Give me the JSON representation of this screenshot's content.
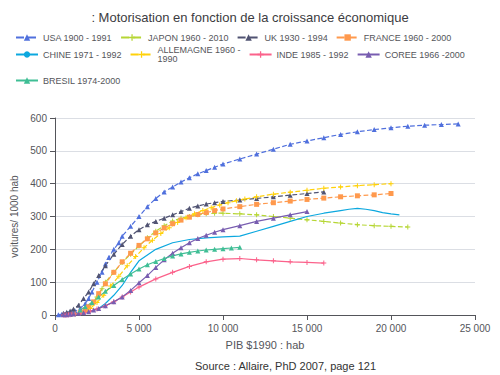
{
  "chart_data": {
    "type": "line",
    "title": ": Motorisation en fonction de la croissance économique",
    "x_label": "PIB $1990 : hab",
    "y_label": "voitures/ 1000 hab",
    "annotations": [
      "Source : Allaire, PhD 2007, page 121"
    ],
    "xlim": [
      0,
      25000
    ],
    "ylim": [
      0,
      600
    ],
    "xticks": [
      0,
      {
        "value": 5000,
        "label": "5 000"
      },
      {
        "value": 10000,
        "label": "10 000"
      },
      {
        "value": 15000,
        "label": "15 000"
      },
      {
        "value": 20000,
        "label": "20 000"
      },
      {
        "value": 25000,
        "label": "25 000"
      }
    ],
    "yticks": [
      0,
      100,
      200,
      300,
      400,
      500,
      600
    ],
    "grid": true,
    "legend": "upper left",
    "series": [
      {
        "name": "USA 1900 - 1991",
        "line_style": "dashed",
        "marker": "triangle",
        "x": [
          200,
          400,
          600,
          800,
          1000,
          1200,
          1500,
          1800,
          2000,
          2200,
          2500,
          2800,
          3000,
          3200,
          3500,
          3800,
          4000,
          4500,
          5000,
          5500,
          6000,
          6500,
          7000,
          7500,
          8000,
          8500,
          9000,
          9500,
          10000,
          11000,
          12000,
          13000,
          14000,
          15000,
          16000,
          17000,
          18000,
          19000,
          20000,
          21000,
          22000,
          23000,
          24000
        ],
        "values": [
          1,
          2,
          3,
          5,
          8,
          12,
          20,
          35,
          50,
          70,
          100,
          130,
          155,
          175,
          200,
          220,
          240,
          270,
          300,
          330,
          355,
          375,
          390,
          405,
          418,
          430,
          440,
          450,
          460,
          475,
          490,
          505,
          520,
          530,
          540,
          550,
          558,
          565,
          570,
          575,
          578,
          580,
          582
        ]
      },
      {
        "name": "JAPON 1960 - 2010",
        "line_style": "dashed",
        "marker": "plus",
        "x": [
          1000,
          1200,
          1500,
          1800,
          2000,
          2200,
          2500,
          2800,
          3000,
          3500,
          4000,
          4500,
          5000,
          5500,
          6000,
          6500,
          7000,
          7500,
          8000,
          8500,
          9000,
          9500,
          10000,
          11000,
          12000,
          13000,
          14000,
          15000,
          16000,
          17000,
          18000,
          19000,
          20000,
          21000
        ],
        "values": [
          2,
          4,
          8,
          15,
          22,
          35,
          55,
          80,
          100,
          130,
          160,
          185,
          210,
          235,
          255,
          272,
          286,
          295,
          300,
          305,
          308,
          310,
          310,
          308,
          305,
          300,
          295,
          290,
          285,
          280,
          275,
          272,
          270,
          268
        ]
      },
      {
        "name": "UK 1930 - 1994",
        "line_style": "dashed",
        "marker": "triangle",
        "x": [
          500,
          700,
          900,
          1100,
          1400,
          1700,
          2000,
          2300,
          2600,
          3000,
          3500,
          4000,
          4500,
          5000,
          5500,
          6000,
          6500,
          7000,
          7500,
          8000,
          8500,
          9000,
          9500,
          10000,
          11000,
          12000,
          13000,
          14000,
          15000,
          16000
        ],
        "values": [
          5,
          8,
          12,
          18,
          30,
          50,
          70,
          95,
          120,
          150,
          185,
          215,
          240,
          260,
          275,
          285,
          295,
          305,
          315,
          325,
          332,
          338,
          342,
          346,
          350,
          355,
          360,
          365,
          370,
          375
        ]
      },
      {
        "name": "FRANCE 1960 - 2000",
        "line_style": "dashed",
        "marker": "square",
        "x": [
          1500,
          1800,
          2000,
          2300,
          2600,
          3000,
          3500,
          4000,
          4500,
          5000,
          5500,
          6000,
          6500,
          7000,
          7500,
          8000,
          8500,
          9000,
          9500,
          10000,
          11000,
          12000,
          13000,
          14000,
          15000,
          16000,
          17000,
          18000,
          19000,
          20000
        ],
        "values": [
          8,
          15,
          25,
          40,
          65,
          95,
          130,
          162,
          188,
          212,
          232,
          250,
          265,
          278,
          289,
          298,
          306,
          312,
          318,
          323,
          330,
          337,
          342,
          347,
          352,
          356,
          360,
          363,
          366,
          370
        ]
      },
      {
        "name": "CHINE 1971 - 1992",
        "line_style": "solid",
        "marker": "none",
        "x": [
          500,
          600,
          700,
          800,
          900,
          1000,
          1100,
          1200,
          1400,
          1600,
          1900,
          2200,
          2600,
          3000,
          3500,
          4000,
          4500,
          5000,
          6000,
          7000,
          8000,
          9000,
          10000,
          11000,
          12000,
          13000,
          14000,
          15000,
          16000,
          17000,
          17500,
          18000,
          18500,
          19000,
          19500,
          20000,
          20500
        ],
        "values": [
          0,
          0,
          0,
          0,
          0,
          1,
          1,
          2,
          3,
          5,
          8,
          12,
          20,
          35,
          60,
          90,
          130,
          165,
          200,
          220,
          230,
          235,
          238,
          240,
          255,
          270,
          285,
          300,
          310,
          318,
          322,
          325,
          322,
          318,
          312,
          308,
          305
        ]
      },
      {
        "name": "ALLEMAGNE 1960 -\n1990",
        "line_style": "dashed",
        "marker": "plus",
        "x": [
          1800,
          2100,
          2500,
          2900,
          3300,
          3800,
          4300,
          4800,
          5300,
          5800,
          6300,
          6800,
          7300,
          7800,
          8300,
          8800,
          9300,
          9800,
          10300,
          10800,
          11300,
          12000,
          13000,
          14000,
          15000,
          16000,
          17000,
          18000,
          19000,
          20000
        ],
        "values": [
          10,
          20,
          38,
          60,
          88,
          118,
          150,
          178,
          205,
          228,
          248,
          266,
          282,
          296,
          308,
          318,
          327,
          335,
          342,
          348,
          353,
          360,
          368,
          374,
          380,
          386,
          390,
          394,
          397,
          400
        ]
      },
      {
        "name": "INDE 1985 - 1992",
        "line_style": "solid",
        "marker": "plus",
        "x": [
          500,
          600,
          700,
          800,
          900,
          1000,
          1200,
          1500,
          1800,
          2100,
          2500,
          3000,
          3500,
          4000,
          4500,
          5000,
          6000,
          7000,
          8000,
          9000,
          10000,
          11000,
          12000,
          13000,
          14000,
          15000,
          16000
        ],
        "values": [
          0,
          0,
          0,
          1,
          1,
          2,
          3,
          5,
          8,
          12,
          18,
          28,
          40,
          55,
          70,
          85,
          110,
          130,
          148,
          162,
          170,
          172,
          168,
          165,
          162,
          160,
          158
        ]
      },
      {
        "name": "COREE 1966 -2000",
        "line_style": "solid",
        "marker": "triangle",
        "x": [
          500,
          700,
          900,
          1100,
          1400,
          1700,
          2000,
          2300,
          2600,
          3000,
          3500,
          4000,
          4500,
          5000,
          5500,
          6000,
          6500,
          7000,
          7500,
          8000,
          8500,
          9000,
          9500,
          10000,
          11000,
          12000,
          13000,
          14000,
          15000
        ],
        "values": [
          1,
          1,
          2,
          3,
          5,
          7,
          10,
          15,
          20,
          28,
          40,
          55,
          75,
          98,
          120,
          145,
          168,
          188,
          205,
          220,
          233,
          243,
          252,
          260,
          272,
          285,
          295,
          305,
          315
        ]
      },
      {
        "name": "BRESIL 1974-2000",
        "line_style": "solid",
        "marker": "triangle",
        "x": [
          1500,
          1800,
          2200,
          2600,
          3000,
          3500,
          4000,
          4500,
          5000,
          5500,
          6000,
          6500,
          7000,
          7500,
          8000,
          8500,
          9000,
          9500,
          10000,
          10500,
          11000
        ],
        "values": [
          15,
          25,
          38,
          55,
          72,
          90,
          108,
          125,
          140,
          153,
          163,
          172,
          180,
          186,
          191,
          195,
          198,
          200,
          202,
          204,
          206
        ]
      }
    ]
  }
}
